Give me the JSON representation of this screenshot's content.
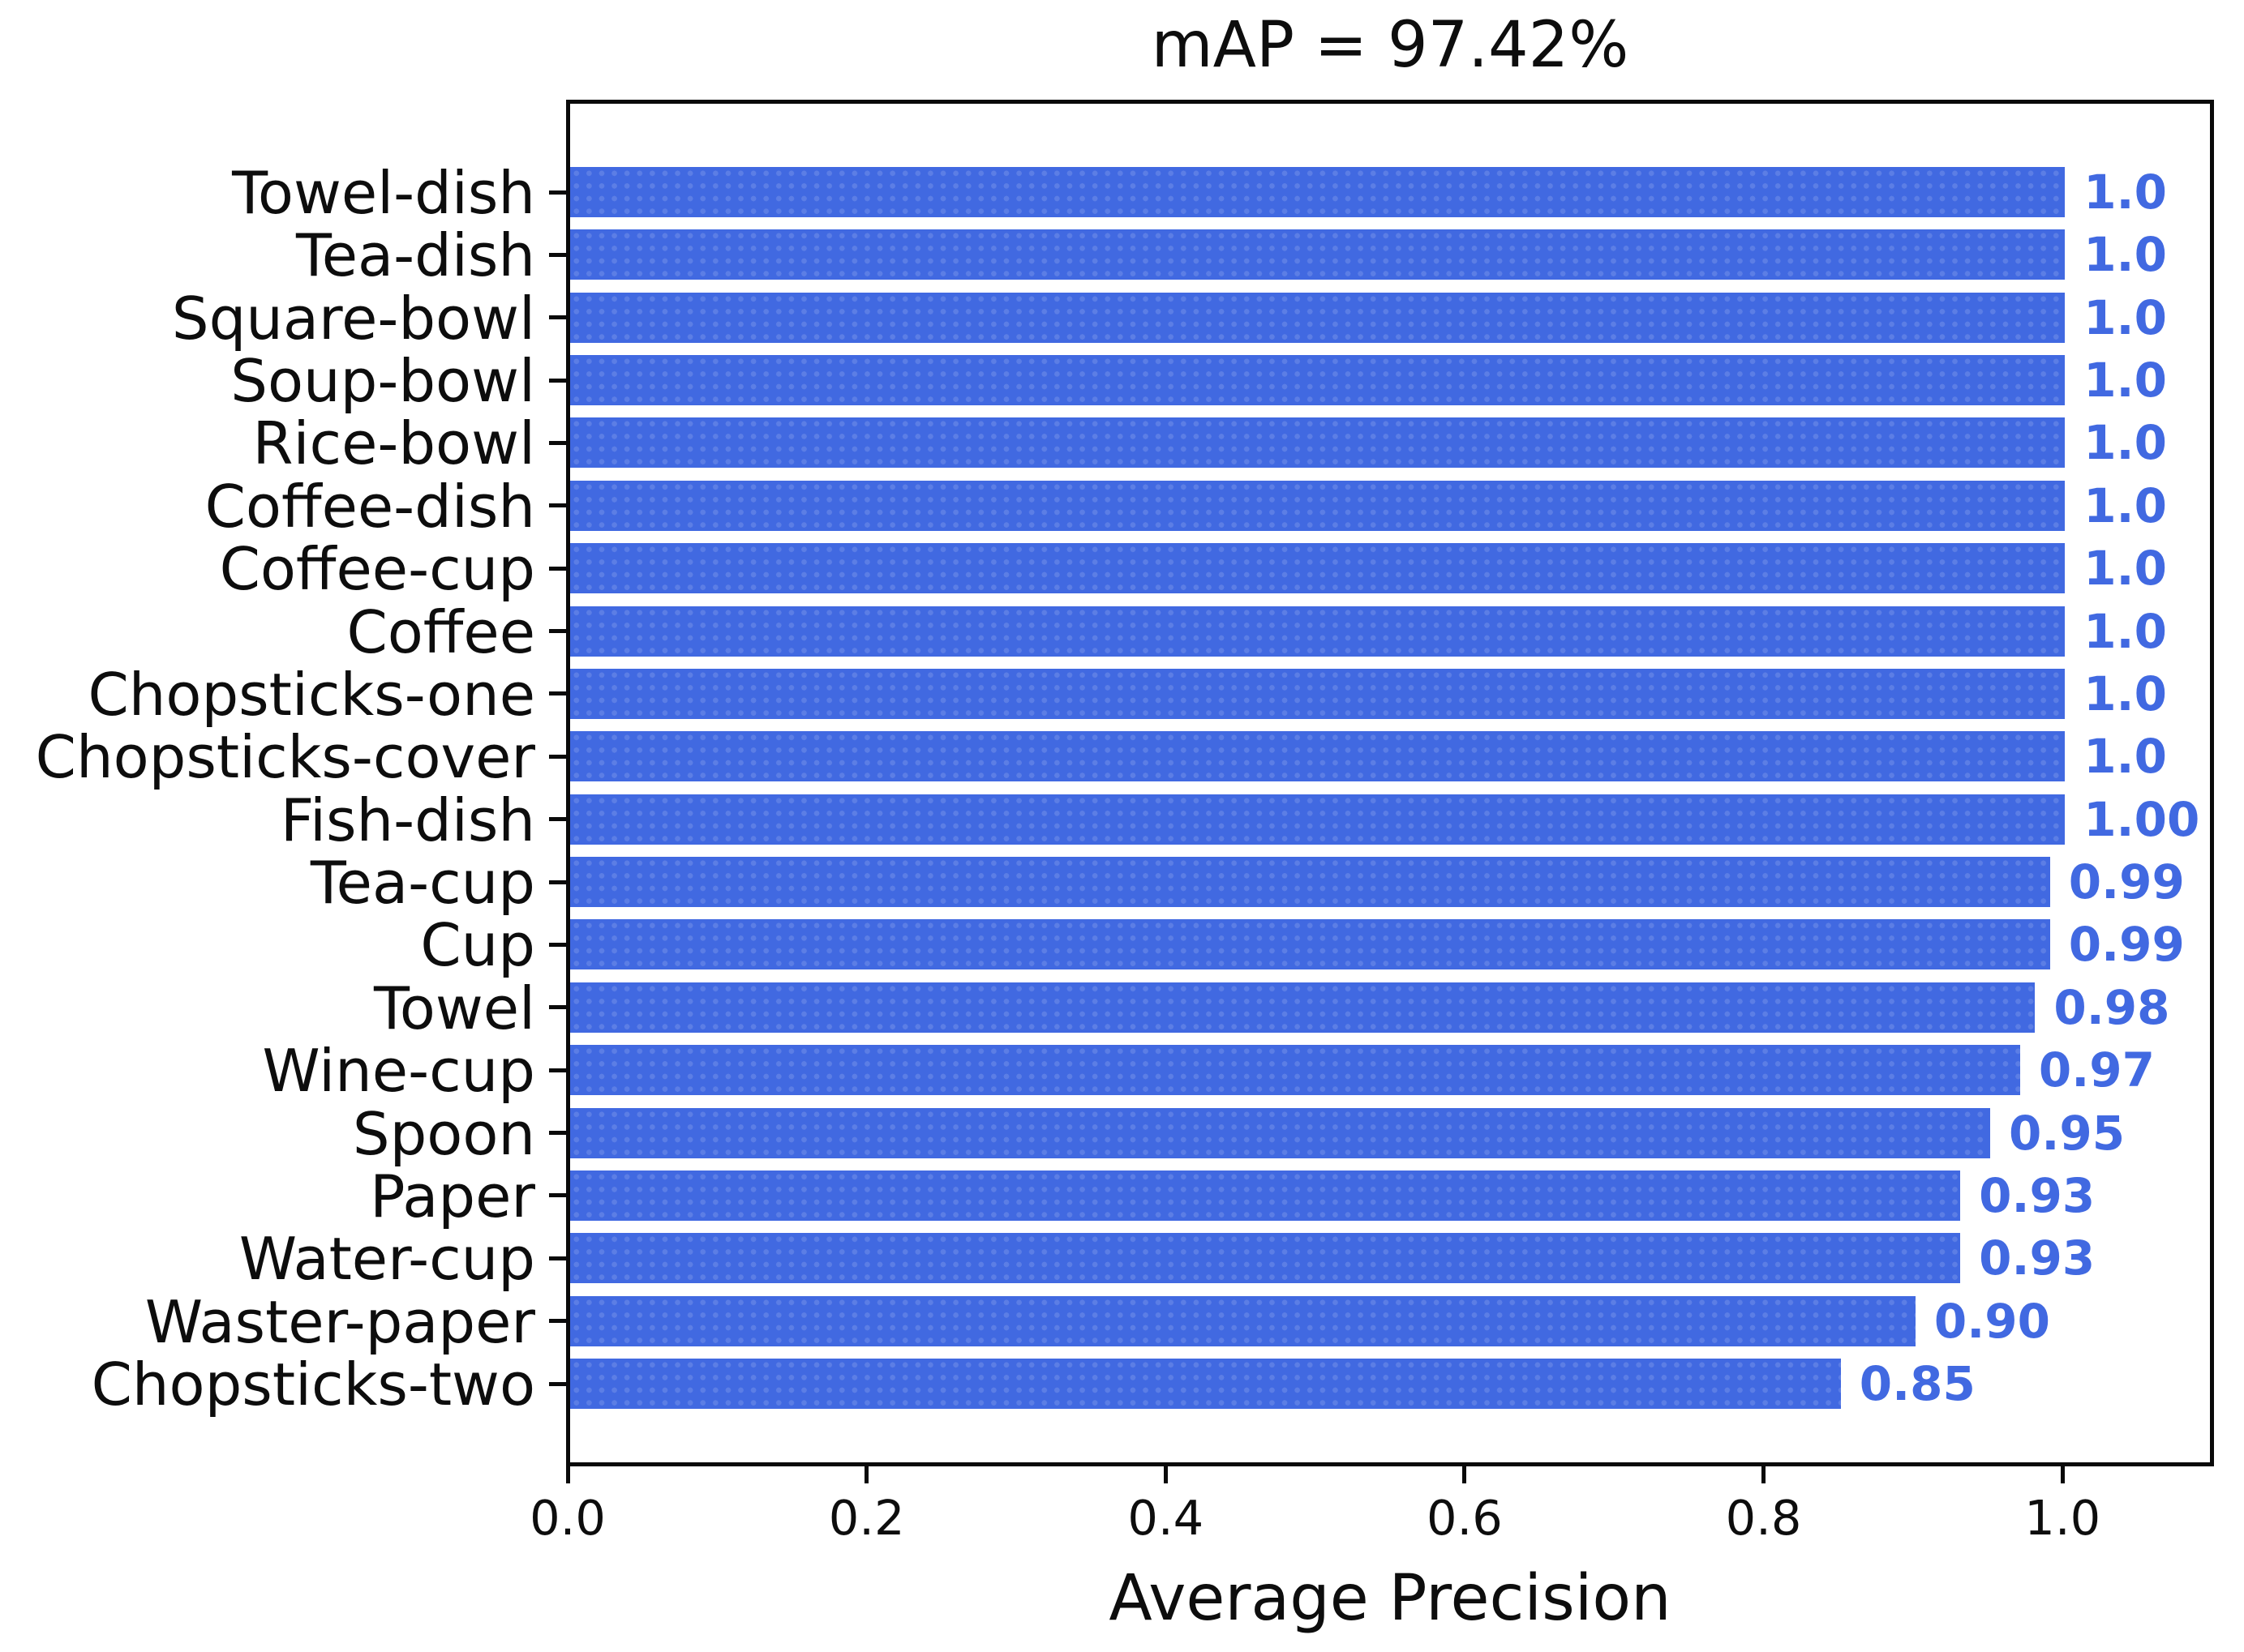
{
  "chart_data": {
    "type": "bar",
    "orientation": "horizontal",
    "title": "mAP = 97.42%",
    "xlabel": "Average Precision",
    "ylabel": "",
    "categories": [
      "Towel-dish",
      "Tea-dish",
      "Square-bowl",
      "Soup-bowl",
      "Rice-bowl",
      "Coffee-dish",
      "Coffee-cup",
      "Coffee",
      "Chopsticks-one",
      "Chopsticks-cover",
      "Fish-dish",
      "Tea-cup",
      "Cup",
      "Towel",
      "Wine-cup",
      "Spoon",
      "Paper",
      "Water-cup",
      "Waster-paper",
      "Chopsticks-two"
    ],
    "values": [
      1.0,
      1.0,
      1.0,
      1.0,
      1.0,
      1.0,
      1.0,
      1.0,
      1.0,
      1.0,
      1.0,
      0.99,
      0.99,
      0.98,
      0.97,
      0.95,
      0.93,
      0.93,
      0.9,
      0.85
    ],
    "value_labels": [
      "1.0",
      "1.0",
      "1.0",
      "1.0",
      "1.0",
      "1.0",
      "1.0",
      "1.0",
      "1.0",
      "1.0",
      "1.00",
      "0.99",
      "0.99",
      "0.98",
      "0.97",
      "0.95",
      "0.93",
      "0.93",
      "0.90",
      "0.85"
    ],
    "xlim": [
      0.0,
      1.097
    ],
    "xticks": [
      0.0,
      0.2,
      0.4,
      0.6,
      0.8,
      1.0
    ],
    "xtick_labels": [
      "0.0",
      "0.2",
      "0.4",
      "0.6",
      "0.8",
      "1.0"
    ],
    "grid": false,
    "legend": null,
    "bar_color": "#4169E1",
    "value_label_color": "#4169E1",
    "axis_color": "#0a0a0a",
    "text_color": "#0d0d0d",
    "background_color": "#ffffff"
  }
}
